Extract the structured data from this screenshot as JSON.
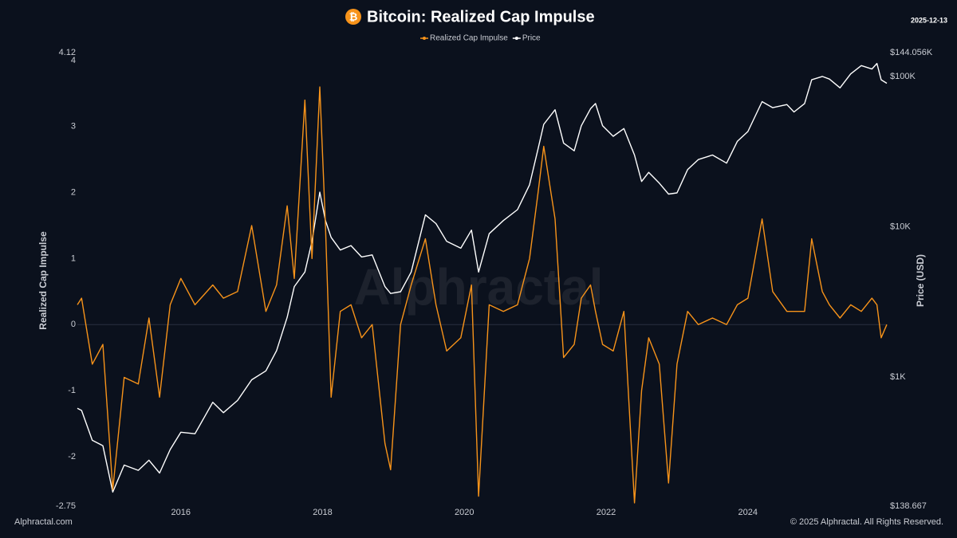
{
  "chart_data": {
    "type": "line",
    "title": "Bitcoin: Realized Cap Impulse",
    "title_icon": "₿",
    "date": "2025-12-13",
    "watermark": "Alphractal",
    "footer_left": "Alphractal.com",
    "footer_right": "© 2025 Alphractal. All Rights Reserved.",
    "ylabel": "Realized Cap Impulse",
    "y2label": "Price (USD)",
    "y2scale": "log",
    "xlim": [
      2014.54,
      2025.96
    ],
    "xticks": [
      2016,
      2018,
      2020,
      2022,
      2024
    ],
    "ylim": [
      -2.75,
      4.12
    ],
    "yticks": [
      -2.75,
      -2,
      -1,
      0,
      1,
      2,
      3,
      4,
      4.12
    ],
    "y2lim": [
      138.667,
      144056
    ],
    "y2ticks": [
      {
        "value": 138.667,
        "label": "$138.667"
      },
      {
        "value": 1000,
        "label": "$1K"
      },
      {
        "value": 10000,
        "label": "$10K"
      },
      {
        "value": 100000,
        "label": "$100K"
      },
      {
        "value": 144056,
        "label": "$144.056K"
      }
    ],
    "x": [
      2014.54,
      2014.6,
      2014.75,
      2014.9,
      2015.04,
      2015.2,
      2015.4,
      2015.55,
      2015.7,
      2015.85,
      2016.0,
      2016.2,
      2016.45,
      2016.6,
      2016.8,
      2017.0,
      2017.2,
      2017.35,
      2017.5,
      2017.6,
      2017.75,
      2017.85,
      2017.96,
      2018.04,
      2018.12,
      2018.25,
      2018.4,
      2018.55,
      2018.7,
      2018.88,
      2018.96,
      2019.1,
      2019.25,
      2019.45,
      2019.6,
      2019.75,
      2019.95,
      2020.1,
      2020.2,
      2020.35,
      2020.55,
      2020.75,
      2020.92,
      2021.04,
      2021.12,
      2021.28,
      2021.4,
      2021.55,
      2021.65,
      2021.78,
      2021.85,
      2021.95,
      2022.1,
      2022.25,
      2022.4,
      2022.5,
      2022.6,
      2022.75,
      2022.88,
      2023.0,
      2023.15,
      2023.3,
      2023.5,
      2023.7,
      2023.85,
      2024.0,
      2024.2,
      2024.35,
      2024.55,
      2024.65,
      2024.8,
      2024.9,
      2025.05,
      2025.15,
      2025.3,
      2025.45,
      2025.6,
      2025.75,
      2025.82,
      2025.88,
      2025.96
    ],
    "series": [
      {
        "name": "Realized Cap Impulse",
        "color": "#f7931a",
        "axis": "y",
        "values": [
          0.3,
          0.4,
          -0.6,
          -0.3,
          -2.5,
          -0.8,
          -0.9,
          0.1,
          -1.1,
          0.3,
          0.7,
          0.3,
          0.6,
          0.4,
          0.5,
          1.5,
          0.2,
          0.6,
          1.8,
          0.7,
          3.4,
          1.0,
          3.6,
          1.5,
          -1.1,
          0.2,
          0.3,
          -0.2,
          0.0,
          -1.8,
          -2.2,
          0.0,
          0.6,
          1.3,
          0.3,
          -0.4,
          -0.2,
          0.6,
          -2.6,
          0.3,
          0.2,
          0.3,
          1.0,
          2.0,
          2.7,
          1.6,
          -0.5,
          -0.3,
          0.4,
          0.6,
          0.2,
          -0.3,
          -0.4,
          0.2,
          -2.7,
          -1.0,
          -0.2,
          -0.6,
          -2.4,
          -0.6,
          0.2,
          0.0,
          0.1,
          0.0,
          0.3,
          0.4,
          1.6,
          0.5,
          0.2,
          0.2,
          0.2,
          1.3,
          0.5,
          0.3,
          0.1,
          0.3,
          0.2,
          0.4,
          0.3,
          -0.2,
          0.0
        ]
      },
      {
        "name": "Price",
        "color": "#ffffff",
        "axis": "y2",
        "values": [
          620,
          600,
          380,
          350,
          172,
          260,
          240,
          280,
          230,
          330,
          430,
          420,
          680,
          580,
          700,
          960,
          1100,
          1500,
          2500,
          4000,
          5000,
          8000,
          17000,
          11000,
          8500,
          7000,
          7500,
          6300,
          6500,
          4000,
          3600,
          3700,
          5000,
          12000,
          10500,
          8000,
          7200,
          9500,
          5000,
          9000,
          11000,
          13000,
          19000,
          33000,
          48000,
          60000,
          36000,
          32000,
          47000,
          61000,
          66000,
          47000,
          40000,
          45000,
          30000,
          20000,
          23000,
          19500,
          16500,
          16800,
          24000,
          28000,
          30000,
          26500,
          37000,
          43000,
          68000,
          62000,
          65000,
          58000,
          66000,
          95000,
          100000,
          96000,
          84000,
          104000,
          118000,
          112000,
          122000,
          95000,
          90000
        ]
      }
    ]
  }
}
